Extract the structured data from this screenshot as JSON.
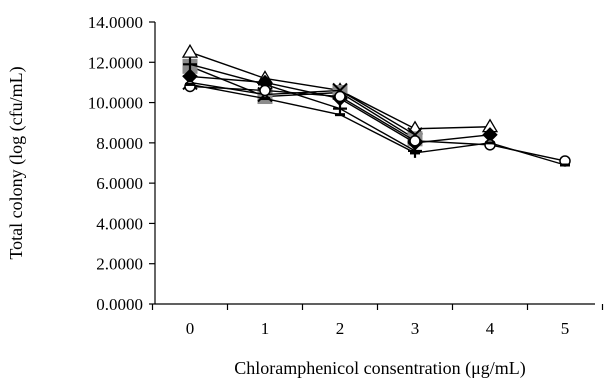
{
  "chart_data": {
    "type": "line",
    "title": "",
    "xlabel": "Chloramphenicol consentration (μg/mL)",
    "ylabel": "Total colony (log (cfu/mL)",
    "x": [
      0,
      1,
      2,
      3,
      4,
      5
    ],
    "x_tick_labels": [
      "0",
      "1",
      "2",
      "3",
      "4",
      "5"
    ],
    "ylim": [
      0,
      14
    ],
    "y_ticks": [
      0,
      2,
      4,
      6,
      8,
      10,
      12,
      14
    ],
    "y_tick_labels": [
      "0.0000",
      "2.0000",
      "4.0000",
      "6.0000",
      "8.0000",
      "10.0000",
      "12.0000",
      "14.0000"
    ],
    "grid": false,
    "legend": "none",
    "series": [
      {
        "marker": "triangle",
        "values": [
          12.5,
          11.2,
          10.6,
          8.7,
          8.8,
          null
        ]
      },
      {
        "marker": "square",
        "values": [
          11.8,
          10.3,
          10.5,
          8.2,
          null,
          null
        ]
      },
      {
        "marker": "plus",
        "values": [
          11.9,
          10.9,
          9.7,
          7.6,
          null,
          null
        ]
      },
      {
        "marker": "x",
        "values": [
          11.0,
          10.4,
          10.6,
          8.4,
          null,
          null
        ]
      },
      {
        "marker": "diamond",
        "values": [
          11.3,
          11.0,
          10.2,
          8.0,
          8.4,
          null
        ]
      },
      {
        "marker": "circle",
        "values": [
          10.8,
          10.6,
          10.3,
          8.1,
          7.9,
          7.1
        ]
      },
      {
        "marker": "dash",
        "values": [
          10.9,
          10.2,
          9.4,
          7.5,
          8.0,
          6.9
        ]
      }
    ]
  }
}
